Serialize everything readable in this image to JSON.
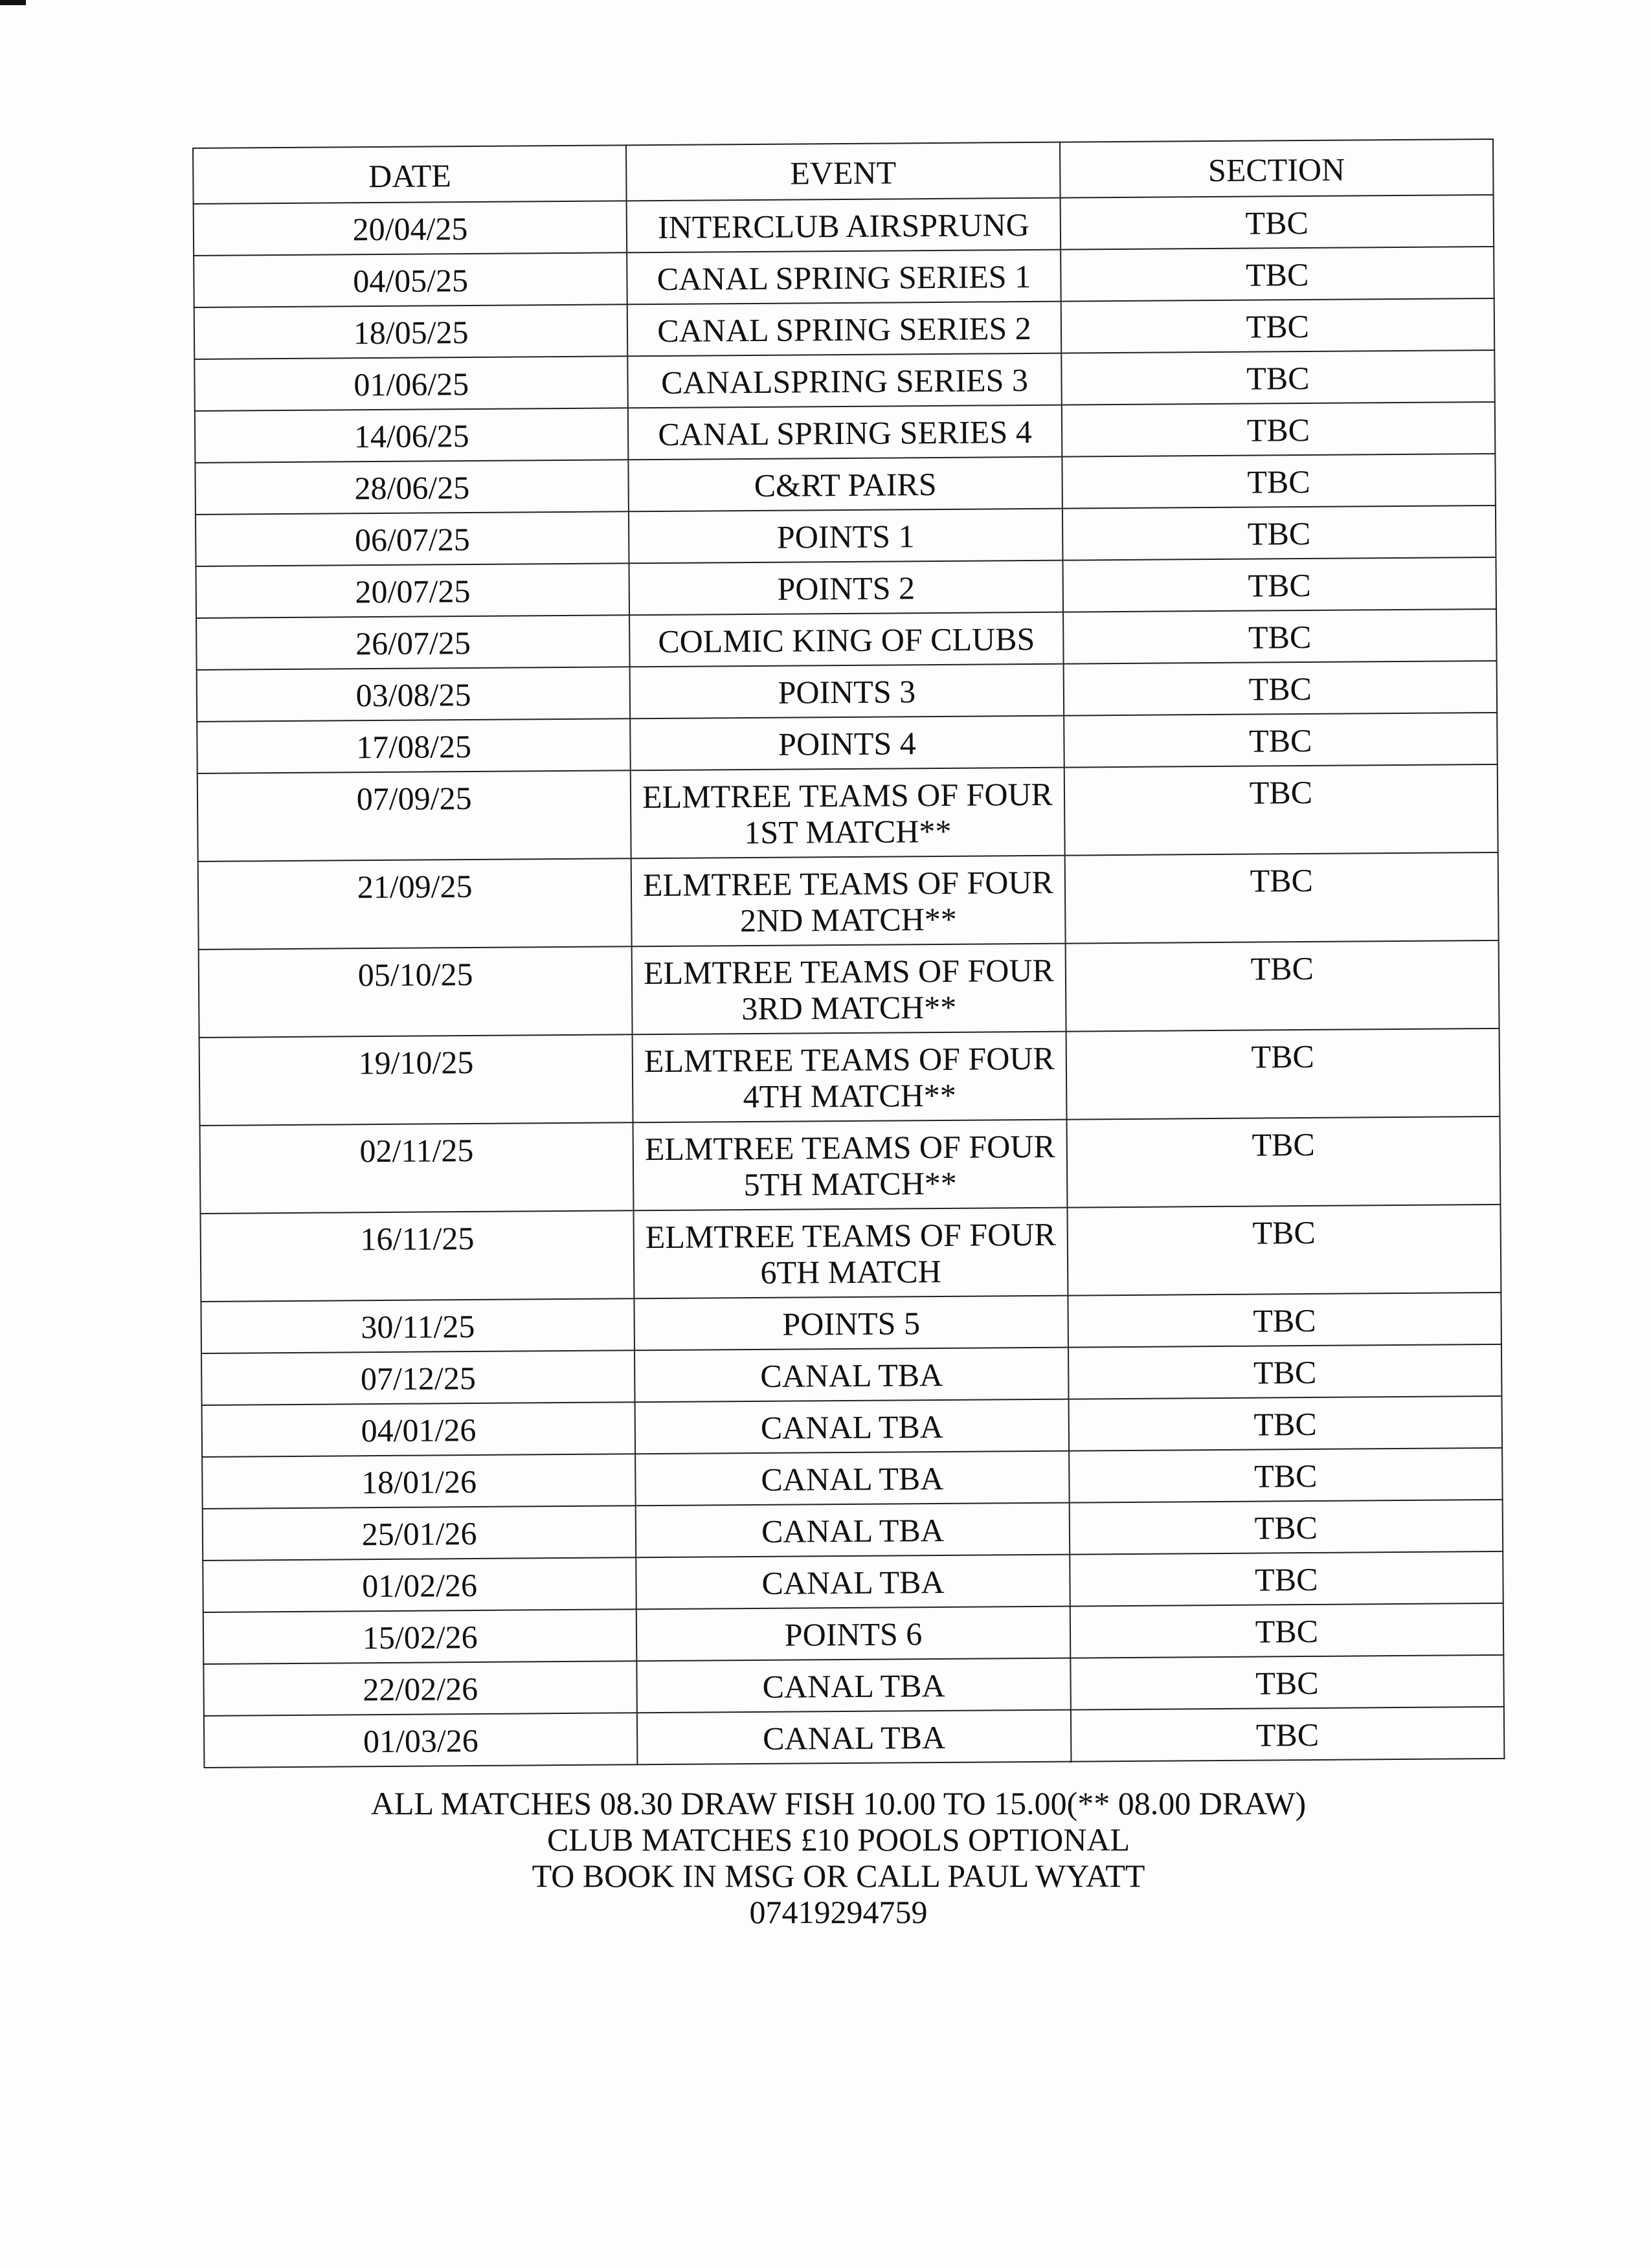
{
  "table": {
    "headers": [
      "DATE",
      "EVENT",
      "SECTION"
    ],
    "rows": [
      {
        "date": "20/04/25",
        "event": [
          "INTERCLUB AIRSPRUNG"
        ],
        "section": "TBC"
      },
      {
        "date": "04/05/25",
        "event": [
          "CANAL SPRING SERIES 1"
        ],
        "section": "TBC"
      },
      {
        "date": "18/05/25",
        "event": [
          "CANAL SPRING SERIES 2"
        ],
        "section": "TBC"
      },
      {
        "date": "01/06/25",
        "event": [
          "CANALSPRING SERIES 3"
        ],
        "section": "TBC"
      },
      {
        "date": "14/06/25",
        "event": [
          "CANAL SPRING SERIES 4"
        ],
        "section": "TBC"
      },
      {
        "date": "28/06/25",
        "event": [
          "C&RT PAIRS"
        ],
        "section": "TBC"
      },
      {
        "date": "06/07/25",
        "event": [
          "POINTS 1"
        ],
        "section": "TBC"
      },
      {
        "date": "20/07/25",
        "event": [
          "POINTS 2"
        ],
        "section": "TBC"
      },
      {
        "date": "26/07/25",
        "event": [
          "COLMIC KING OF CLUBS"
        ],
        "section": "TBC"
      },
      {
        "date": "03/08/25",
        "event": [
          "POINTS 3"
        ],
        "section": "TBC"
      },
      {
        "date": "17/08/25",
        "event": [
          "POINTS 4"
        ],
        "section": "TBC"
      },
      {
        "date": "07/09/25",
        "event": [
          "ELMTREE TEAMS OF FOUR",
          "1ST MATCH**"
        ],
        "section": "TBC"
      },
      {
        "date": "21/09/25",
        "event": [
          "ELMTREE TEAMS OF FOUR",
          "2ND MATCH**"
        ],
        "section": "TBC"
      },
      {
        "date": "05/10/25",
        "event": [
          "ELMTREE TEAMS OF FOUR",
          "3RD MATCH**"
        ],
        "section": "TBC"
      },
      {
        "date": "19/10/25",
        "event": [
          "ELMTREE TEAMS OF FOUR",
          "4TH MATCH**"
        ],
        "section": "TBC"
      },
      {
        "date": "02/11/25",
        "event": [
          "ELMTREE TEAMS OF FOUR",
          "5TH MATCH**"
        ],
        "section": "TBC"
      },
      {
        "date": "16/11/25",
        "event": [
          "ELMTREE TEAMS OF FOUR",
          "6TH MATCH"
        ],
        "section": "TBC"
      },
      {
        "date": "30/11/25",
        "event": [
          "POINTS 5"
        ],
        "section": "TBC"
      },
      {
        "date": "07/12/25",
        "event": [
          "CANAL TBA"
        ],
        "section": "TBC"
      },
      {
        "date": "04/01/26",
        "event": [
          "CANAL TBA"
        ],
        "section": "TBC"
      },
      {
        "date": "18/01/26",
        "event": [
          "CANAL TBA"
        ],
        "section": "TBC"
      },
      {
        "date": "25/01/26",
        "event": [
          "CANAL TBA"
        ],
        "section": "TBC"
      },
      {
        "date": "01/02/26",
        "event": [
          "CANAL TBA"
        ],
        "section": "TBC"
      },
      {
        "date": "15/02/26",
        "event": [
          "POINTS 6"
        ],
        "section": "TBC"
      },
      {
        "date": "22/02/26",
        "event": [
          "CANAL TBA"
        ],
        "section": "TBC"
      },
      {
        "date": "01/03/26",
        "event": [
          "CANAL TBA"
        ],
        "section": "TBC"
      }
    ]
  },
  "footer": {
    "lines": [
      "ALL MATCHES 08.30 DRAW FISH 10.00 TO 15.00(** 08.00 DRAW)",
      "CLUB MATCHES £10 POOLS OPTIONAL",
      "TO BOOK IN MSG OR CALL PAUL WYATT",
      "07419294759"
    ]
  }
}
